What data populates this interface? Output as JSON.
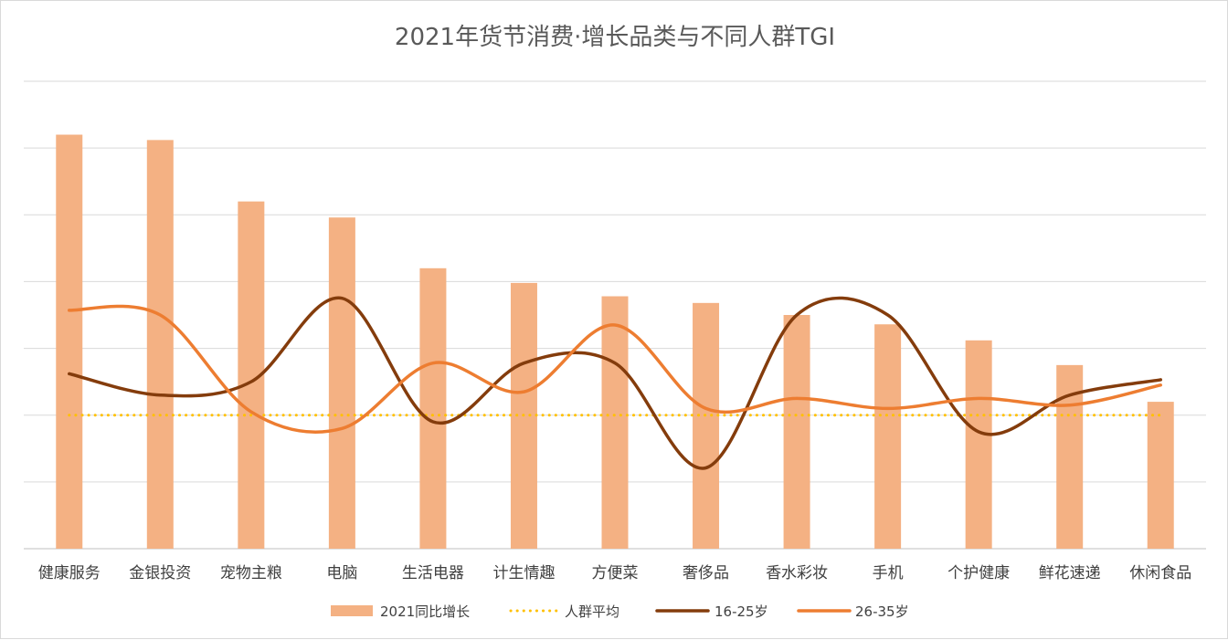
{
  "chart_data": {
    "type": "bar",
    "title": "2021年货节消费·增长品类与不同人群TGI",
    "categories": [
      "健康服务",
      "金银投资",
      "宠物主粮",
      "电脑",
      "生活电器",
      "计生情趣",
      "方便菜",
      "奢侈品",
      "香水彩妆",
      "手机",
      "个护健康",
      "鲜花速递",
      "休闲食品"
    ],
    "ylim": [
      0,
      7
    ],
    "grid": true,
    "y_tick_labels_shown": false,
    "legend_position": "bottom",
    "series": [
      {
        "name": "2021同比增长",
        "kind": "bar",
        "color": "#f4b183",
        "values": [
          6.2,
          6.12,
          5.2,
          4.96,
          4.2,
          3.98,
          3.78,
          3.68,
          3.5,
          3.36,
          3.12,
          2.75,
          2.2
        ]
      },
      {
        "name": "人群平均",
        "kind": "line-dotted",
        "color": "#ffc000",
        "values": [
          2.0,
          2.0,
          2.0,
          2.0,
          2.0,
          2.0,
          2.0,
          2.0,
          2.0,
          2.0,
          2.0,
          2.0,
          2.0
        ]
      },
      {
        "name": "16-25岁",
        "kind": "line-smooth",
        "color": "#843c0c",
        "values": [
          2.62,
          2.3,
          2.5,
          3.75,
          1.9,
          2.78,
          2.78,
          1.21,
          3.5,
          3.5,
          1.75,
          2.3,
          2.53
        ]
      },
      {
        "name": "26-35岁",
        "kind": "line-smooth",
        "color": "#ed7d31",
        "values": [
          3.57,
          3.5,
          2.05,
          1.8,
          2.78,
          2.35,
          3.35,
          2.1,
          2.25,
          2.1,
          2.25,
          2.15,
          2.45
        ]
      }
    ]
  }
}
